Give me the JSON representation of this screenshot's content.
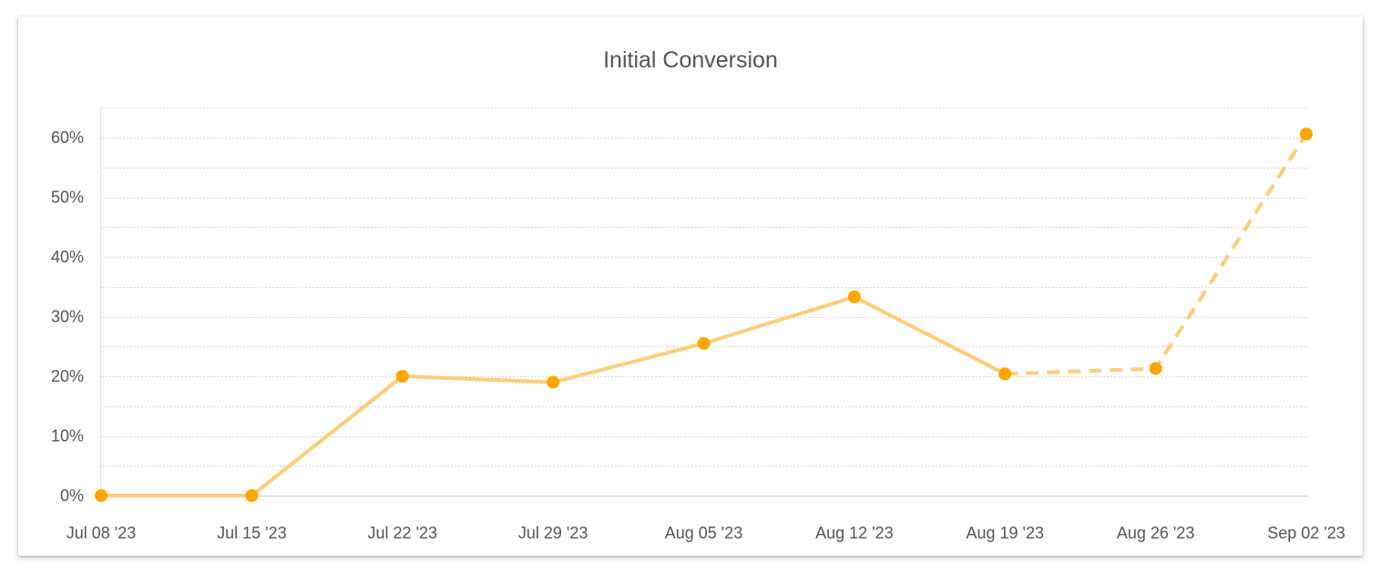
{
  "chart_data": {
    "type": "line",
    "title": "Initial Conversion",
    "xlabel": "",
    "ylabel": "",
    "categories": [
      "Jul 08 '23",
      "Jul 15 '23",
      "Jul 22 '23",
      "Jul 29 '23",
      "Aug 05 '23",
      "Aug 12 '23",
      "Aug 19 '23",
      "Aug 26 '23",
      "Sep 02 '23"
    ],
    "series": [
      {
        "values": [
          0,
          0,
          20,
          19,
          25.5,
          33.3,
          20.4,
          21.3,
          60.6
        ],
        "color": "#ffcc77",
        "marker_color": "#ffa500",
        "dashed_from_index": 6
      }
    ],
    "ylim": [
      0,
      65
    ],
    "yticks": [
      0,
      10,
      20,
      30,
      40,
      50,
      60
    ],
    "ytick_labels": [
      "0%",
      "10%",
      "20%",
      "30%",
      "40%",
      "50%",
      "60%"
    ],
    "grid": true,
    "legend": "none"
  }
}
